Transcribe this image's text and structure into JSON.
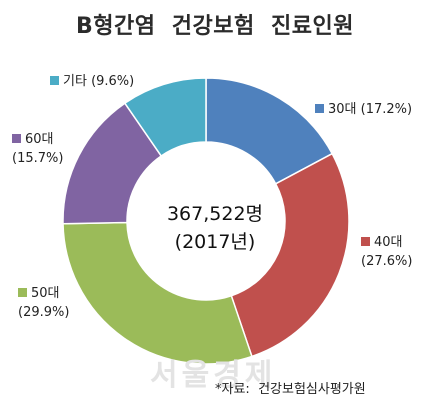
{
  "chart_data": {
    "type": "pie",
    "title": "B형간염  건강보험  진료인원",
    "center_value": "367,522명",
    "center_year": "(2017년)",
    "categories": [
      "30대",
      "40대",
      "50대",
      "60대",
      "기타"
    ],
    "values": [
      17.2,
      27.6,
      29.9,
      15.7,
      9.6
    ],
    "value_labels": [
      "(17.2%)",
      "(27.6%)",
      "(29.9%)",
      "(15.7%)",
      "(9.6%)"
    ],
    "colors": [
      "#4f81bd",
      "#c0504d",
      "#9bbb59",
      "#8064a2",
      "#4bacc6"
    ]
  },
  "watermark": "서울경제",
  "source": "*자료:  건강보험심사평가원"
}
